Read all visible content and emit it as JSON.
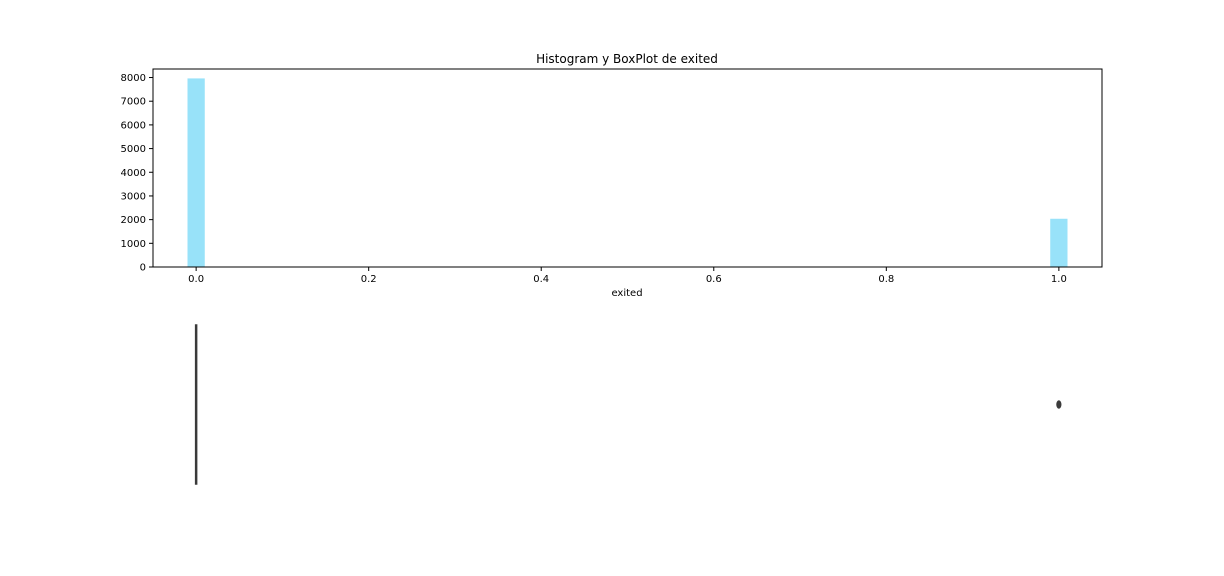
{
  "chart_data": [
    {
      "type": "histogram",
      "title": "Histogram y BoxPlot de exited",
      "xlabel": "exited",
      "ylabel": "",
      "xlim": [
        -0.05,
        1.05
      ],
      "ylim": [
        0,
        8360
      ],
      "x_ticks": [
        0.0,
        0.2,
        0.4,
        0.6,
        0.8,
        1.0
      ],
      "x_tick_labels": [
        "0.0",
        "0.2",
        "0.4",
        "0.6",
        "0.8",
        "1.0"
      ],
      "y_ticks": [
        0,
        1000,
        2000,
        3000,
        4000,
        5000,
        6000,
        7000,
        8000
      ],
      "y_tick_labels": [
        "0",
        "1000",
        "2000",
        "3000",
        "4000",
        "5000",
        "6000",
        "7000",
        "8000"
      ],
      "bar_width": 0.02,
      "bars": [
        {
          "x": 0.0,
          "value": 7963
        },
        {
          "x": 1.0,
          "value": 2037
        }
      ],
      "bar_color": "#98e2f9",
      "grid": false
    },
    {
      "type": "boxplot",
      "title": "",
      "xlabel": "",
      "q1": 0,
      "median": 0,
      "q3": 0,
      "whisker_low": 0,
      "whisker_high": 0,
      "outliers": [
        1.0
      ],
      "line_color": "#3b3b3b"
    }
  ]
}
